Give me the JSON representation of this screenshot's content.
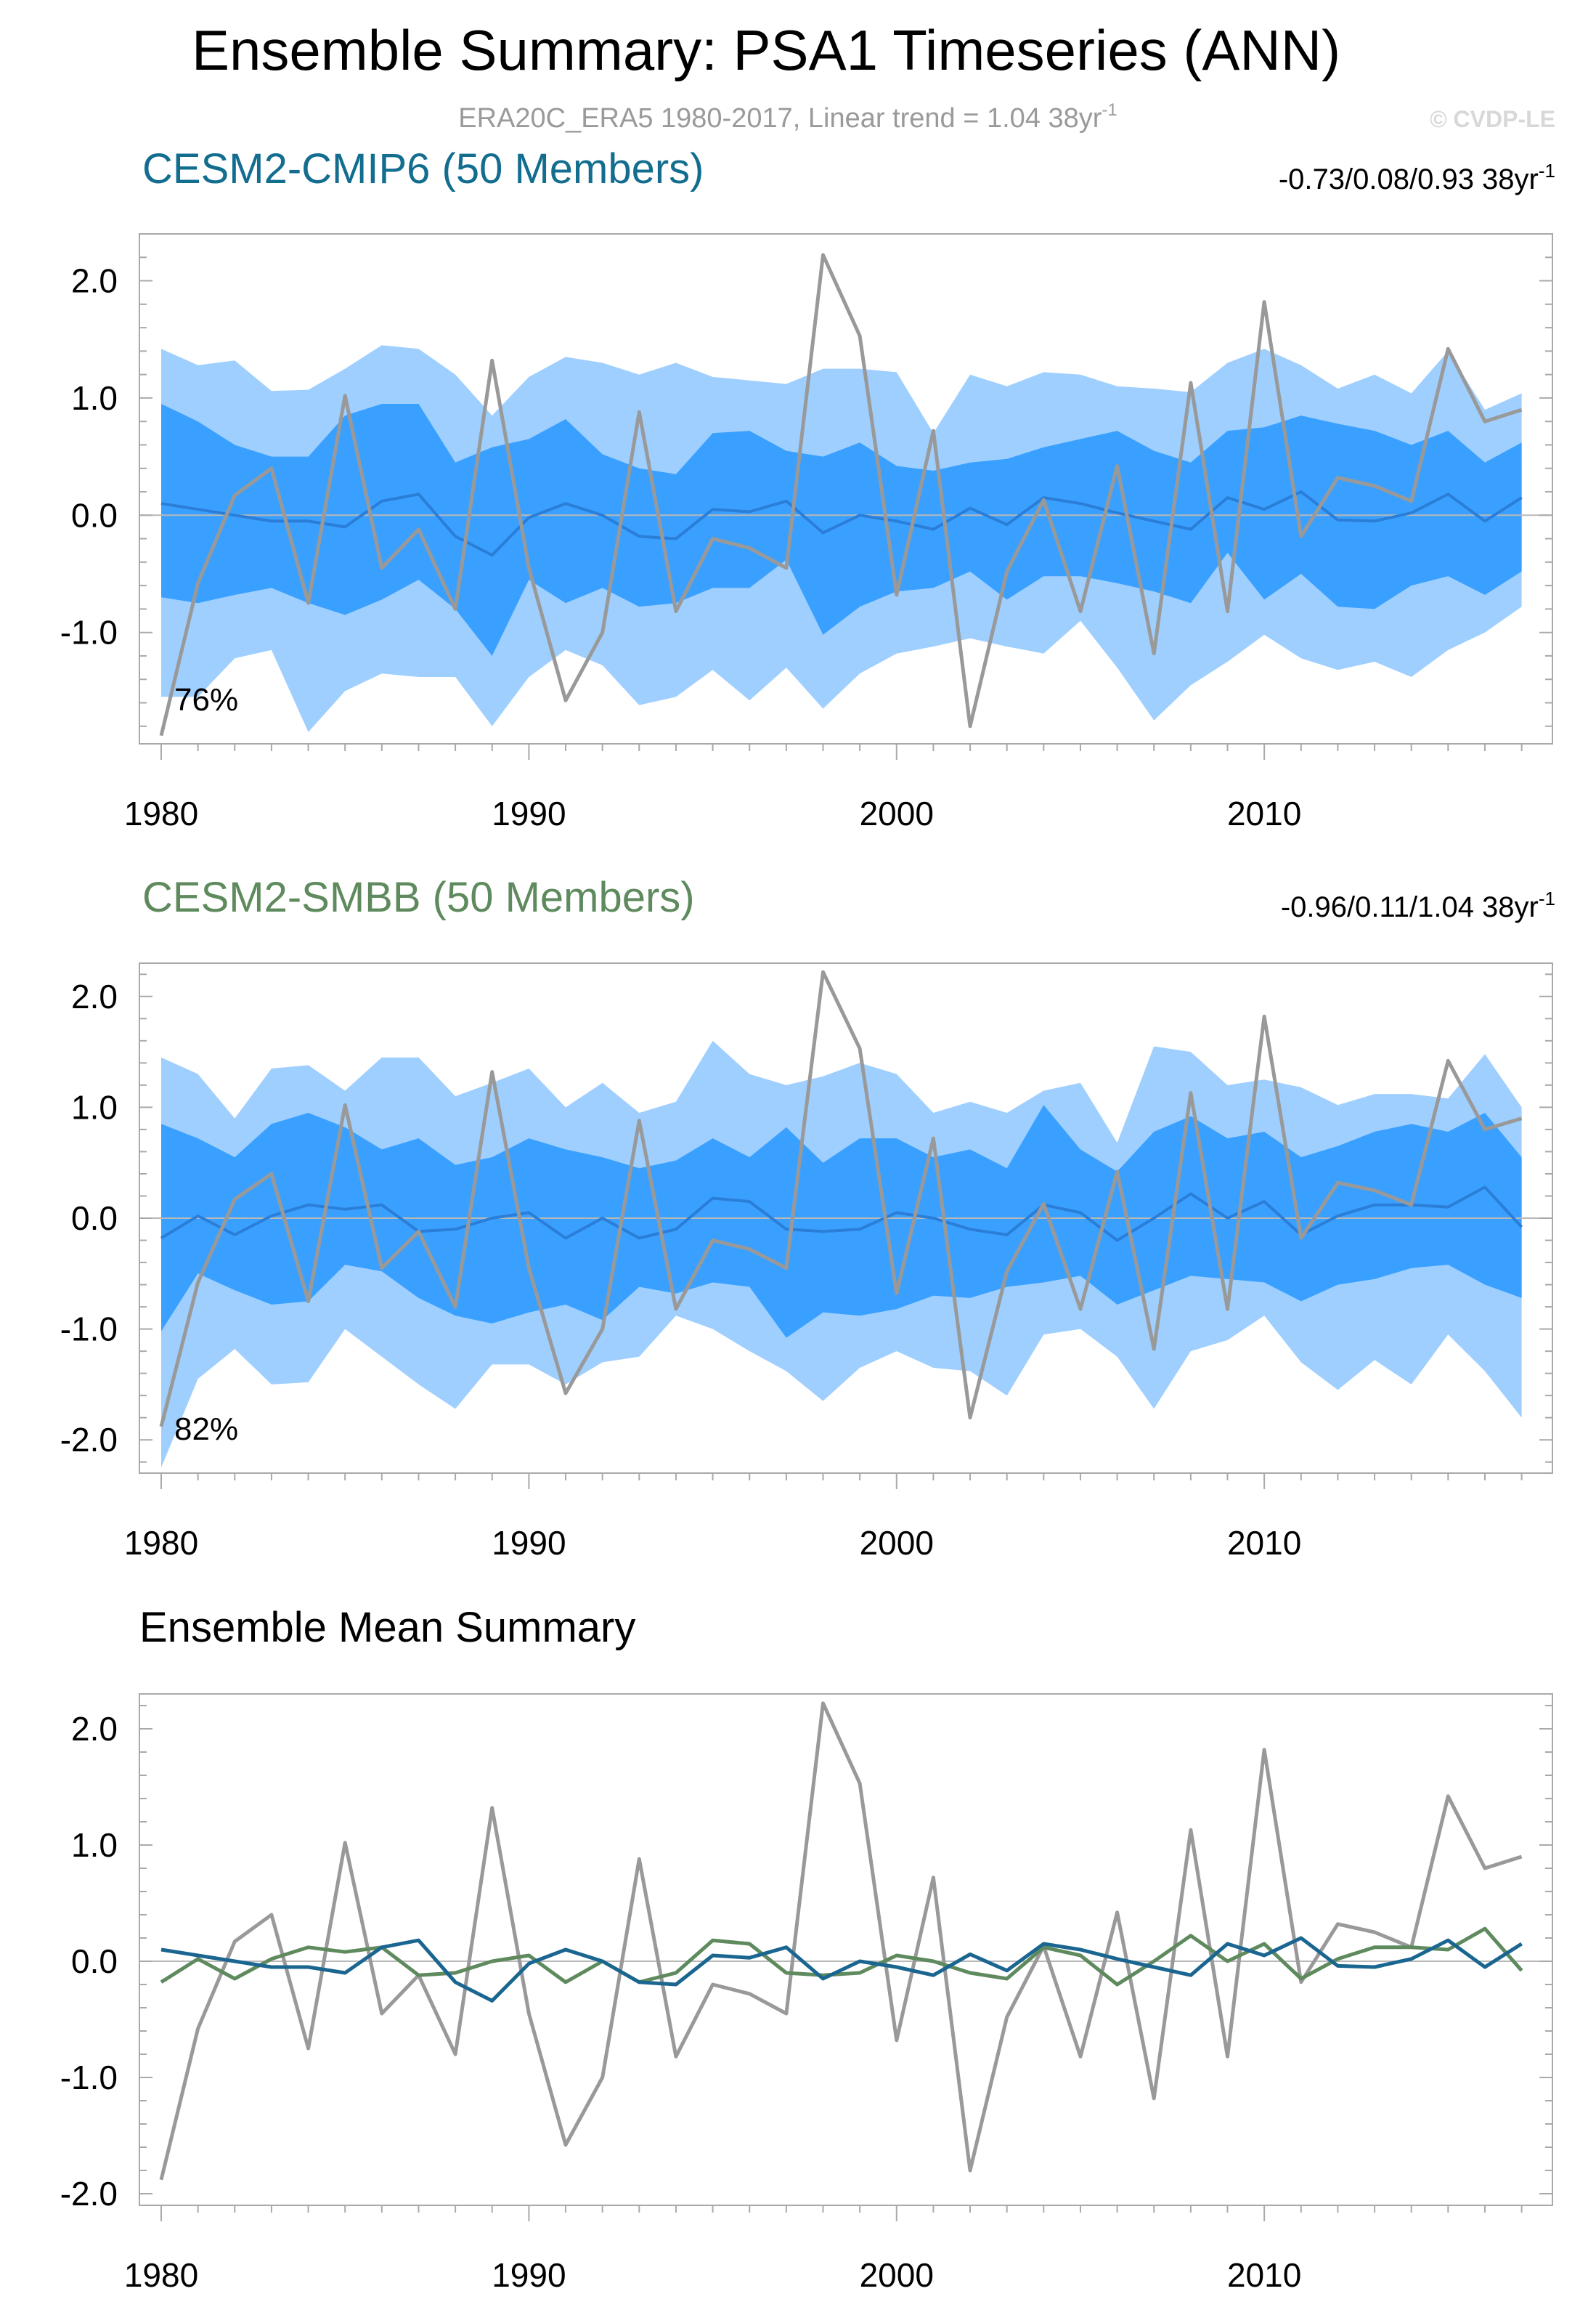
{
  "title": "Ensemble Summary: PSA1 Timeseries (ANN)",
  "subtitle": "ERA20C_ERA5 1980-2017, Linear trend = 1.04 38yr",
  "subtitle_sup": "-1",
  "copyright": "© CVDP-LE",
  "colors": {
    "obs": "#999999",
    "band_outer": "#9fcfff",
    "band_inner": "#3aa0ff",
    "cmip6_title": "#126d8f",
    "smbb_title": "#5e8a5e",
    "cmip6_mean": "#1a6690",
    "smbb_mean": "#5e8a5e"
  },
  "chart_data": [
    {
      "type": "area",
      "name": "cmip6",
      "title": "CESM2-CMIP6 (50 Members)",
      "trend_text": "-0.73/0.08/0.93 38yr",
      "trend_sup": "-1",
      "percent_label": "76%",
      "x": [
        1980,
        1981,
        1982,
        1983,
        1984,
        1985,
        1986,
        1987,
        1988,
        1989,
        1990,
        1991,
        1992,
        1993,
        1994,
        1995,
        1996,
        1997,
        1998,
        1999,
        2000,
        2001,
        2002,
        2003,
        2004,
        2005,
        2006,
        2007,
        2008,
        2009,
        2010,
        2011,
        2012,
        2013,
        2014,
        2015,
        2016,
        2017
      ],
      "xlim": [
        1980,
        2017.6
      ],
      "ylim": [
        -1.95,
        2.4
      ],
      "x_ticks": [
        1980,
        1990,
        2000,
        2010
      ],
      "y_ticks": [
        2.0,
        1.0,
        0.0,
        -1.0
      ],
      "y_tick_labels": [
        "2.0",
        "1.0",
        "0.0",
        "-1.0"
      ],
      "outer_upper": [
        1.42,
        1.28,
        1.32,
        1.06,
        1.07,
        1.25,
        1.45,
        1.42,
        1.2,
        0.85,
        1.18,
        1.35,
        1.3,
        1.2,
        1.3,
        1.18,
        1.15,
        1.12,
        1.25,
        1.25,
        1.22,
        0.7,
        1.2,
        1.1,
        1.22,
        1.2,
        1.1,
        1.08,
        1.05,
        1.3,
        1.42,
        1.28,
        1.08,
        1.2,
        1.04,
        1.4,
        0.9,
        1.04
      ],
      "inner_upper": [
        0.95,
        0.8,
        0.6,
        0.5,
        0.5,
        0.85,
        0.95,
        0.95,
        0.45,
        0.58,
        0.65,
        0.82,
        0.52,
        0.4,
        0.35,
        0.7,
        0.72,
        0.55,
        0.5,
        0.62,
        0.42,
        0.38,
        0.45,
        0.48,
        0.58,
        0.65,
        0.72,
        0.55,
        0.45,
        0.72,
        0.75,
        0.85,
        0.78,
        0.72,
        0.6,
        0.72,
        0.45,
        0.62
      ],
      "mean": [
        0.1,
        0.05,
        0.0,
        -0.05,
        -0.05,
        -0.1,
        0.12,
        0.18,
        -0.18,
        -0.34,
        -0.02,
        0.1,
        0.0,
        -0.18,
        -0.2,
        0.05,
        0.03,
        0.12,
        -0.15,
        0.0,
        -0.05,
        -0.12,
        0.06,
        -0.08,
        0.15,
        0.1,
        0.02,
        -0.05,
        -0.12,
        0.15,
        0.05,
        0.2,
        -0.04,
        -0.05,
        0.02,
        0.18,
        -0.05,
        0.15
      ],
      "inner_lower": [
        -0.7,
        -0.75,
        -0.68,
        -0.62,
        -0.75,
        -0.85,
        -0.72,
        -0.55,
        -0.8,
        -1.2,
        -0.55,
        -0.75,
        -0.62,
        -0.78,
        -0.75,
        -0.62,
        -0.62,
        -0.38,
        -1.02,
        -0.78,
        -0.65,
        -0.62,
        -0.48,
        -0.72,
        -0.52,
        -0.52,
        -0.58,
        -0.65,
        -0.75,
        -0.32,
        -0.72,
        -0.5,
        -0.78,
        -0.8,
        -0.6,
        -0.52,
        -0.68,
        -0.48
      ],
      "outer_lower": [
        -1.55,
        -1.55,
        -1.22,
        -1.15,
        -1.85,
        -1.5,
        -1.35,
        -1.38,
        -1.38,
        -1.8,
        -1.38,
        -1.15,
        -1.28,
        -1.62,
        -1.55,
        -1.32,
        -1.58,
        -1.3,
        -1.65,
        -1.35,
        -1.18,
        -1.12,
        -1.05,
        -1.12,
        -1.18,
        -0.9,
        -1.3,
        -1.75,
        -1.45,
        -1.25,
        -1.02,
        -1.22,
        -1.32,
        -1.25,
        -1.38,
        -1.15,
        -1.0,
        -0.78
      ]
    },
    {
      "type": "area",
      "name": "smbb",
      "title": "CESM2-SMBB (50 Members)",
      "trend_text": "-0.96/0.11/1.04 38yr",
      "trend_sup": "-1",
      "percent_label": "82%",
      "x": [
        1980,
        1981,
        1982,
        1983,
        1984,
        1985,
        1986,
        1987,
        1988,
        1989,
        1990,
        1991,
        1992,
        1993,
        1994,
        1995,
        1996,
        1997,
        1998,
        1999,
        2000,
        2001,
        2002,
        2003,
        2004,
        2005,
        2006,
        2007,
        2008,
        2009,
        2010,
        2011,
        2012,
        2013,
        2014,
        2015,
        2016,
        2017
      ],
      "xlim": [
        1980,
        2017.6
      ],
      "ylim": [
        -2.3,
        2.3
      ],
      "x_ticks": [
        1980,
        1990,
        2000,
        2010
      ],
      "y_ticks": [
        2.0,
        1.0,
        0.0,
        -1.0,
        -2.0
      ],
      "y_tick_labels": [
        "2.0",
        "1.0",
        "0.0",
        "-1.0",
        "-2.0"
      ],
      "outer_upper": [
        1.45,
        1.3,
        0.9,
        1.35,
        1.38,
        1.15,
        1.45,
        1.45,
        1.1,
        1.22,
        1.35,
        1.0,
        1.22,
        0.95,
        1.05,
        1.6,
        1.3,
        1.2,
        1.28,
        1.4,
        1.3,
        0.95,
        1.05,
        0.95,
        1.15,
        1.22,
        0.68,
        1.55,
        1.5,
        1.2,
        1.25,
        1.18,
        1.02,
        1.12,
        1.12,
        1.08,
        1.48,
        1.0
      ],
      "inner_upper": [
        0.85,
        0.72,
        0.55,
        0.85,
        0.95,
        0.82,
        0.62,
        0.72,
        0.48,
        0.55,
        0.72,
        0.62,
        0.55,
        0.45,
        0.52,
        0.72,
        0.55,
        0.82,
        0.5,
        0.72,
        0.72,
        0.55,
        0.62,
        0.45,
        1.02,
        0.62,
        0.42,
        0.78,
        0.92,
        0.72,
        0.78,
        0.55,
        0.65,
        0.78,
        0.85,
        0.78,
        0.95,
        0.55
      ],
      "mean": [
        -0.18,
        0.02,
        -0.15,
        0.02,
        0.12,
        0.08,
        0.12,
        -0.12,
        -0.1,
        0.0,
        0.05,
        -0.18,
        0.0,
        -0.18,
        -0.1,
        0.18,
        0.15,
        -0.1,
        -0.12,
        -0.1,
        0.05,
        0.0,
        -0.1,
        -0.15,
        0.12,
        0.05,
        -0.2,
        0.0,
        0.22,
        0.0,
        0.15,
        -0.15,
        0.02,
        0.12,
        0.12,
        0.1,
        0.28,
        -0.08
      ],
      "inner_lower": [
        -1.02,
        -0.5,
        -0.65,
        -0.78,
        -0.75,
        -0.42,
        -0.48,
        -0.72,
        -0.88,
        -0.95,
        -0.85,
        -0.78,
        -0.92,
        -0.62,
        -0.68,
        -0.58,
        -0.62,
        -1.08,
        -0.85,
        -0.88,
        -0.82,
        -0.7,
        -0.72,
        -0.62,
        -0.58,
        -0.52,
        -0.78,
        -0.65,
        -0.52,
        -0.55,
        -0.58,
        -0.75,
        -0.6,
        -0.55,
        -0.45,
        -0.42,
        -0.6,
        -0.72
      ],
      "outer_lower": [
        -2.25,
        -1.45,
        -1.18,
        -1.5,
        -1.48,
        -1.0,
        -1.25,
        -1.5,
        -1.72,
        -1.32,
        -1.32,
        -1.5,
        -1.3,
        -1.25,
        -0.88,
        -1.0,
        -1.2,
        -1.38,
        -1.65,
        -1.35,
        -1.2,
        -1.35,
        -1.38,
        -1.6,
        -1.05,
        -1.0,
        -1.25,
        -1.72,
        -1.2,
        -1.1,
        -0.88,
        -1.3,
        -1.55,
        -1.28,
        -1.5,
        -1.05,
        -1.38,
        -1.8
      ]
    },
    {
      "type": "line",
      "name": "mean",
      "title": "Ensemble Mean Summary",
      "x": [
        1980,
        1981,
        1982,
        1983,
        1984,
        1985,
        1986,
        1987,
        1988,
        1989,
        1990,
        1991,
        1992,
        1993,
        1994,
        1995,
        1996,
        1997,
        1998,
        1999,
        2000,
        2001,
        2002,
        2003,
        2004,
        2005,
        2006,
        2007,
        2008,
        2009,
        2010,
        2011,
        2012,
        2013,
        2014,
        2015,
        2016,
        2017
      ],
      "xlim": [
        1980,
        2017.6
      ],
      "ylim": [
        -2.1,
        2.3
      ],
      "x_ticks": [
        1980,
        1990,
        2000,
        2010
      ],
      "y_ticks": [
        2.0,
        1.0,
        0.0,
        -1.0,
        -2.0
      ],
      "y_tick_labels": [
        "2.0",
        "1.0",
        "0.0",
        "-1.0",
        "-2.0"
      ],
      "series": [
        {
          "name": "CESM2-CMIP6",
          "ref": "cmip6"
        },
        {
          "name": "CESM2-SMBB",
          "ref": "smbb"
        },
        {
          "name": "ERA20C_ERA5",
          "ref": "obs"
        }
      ]
    }
  ],
  "obs_series": {
    "name": "ERA20C_ERA5",
    "values": [
      -1.88,
      -0.58,
      0.17,
      0.4,
      -0.75,
      1.02,
      -0.45,
      -0.12,
      -0.8,
      1.32,
      -0.45,
      -1.58,
      -1.0,
      0.88,
      -0.82,
      -0.2,
      -0.28,
      -0.45,
      2.22,
      1.53,
      -0.68,
      0.72,
      -1.8,
      -0.48,
      0.13,
      -0.82,
      0.42,
      -1.18,
      1.13,
      -0.82,
      1.82,
      -0.18,
      0.32,
      0.25,
      0.12,
      1.42,
      0.8,
      0.9
    ]
  }
}
